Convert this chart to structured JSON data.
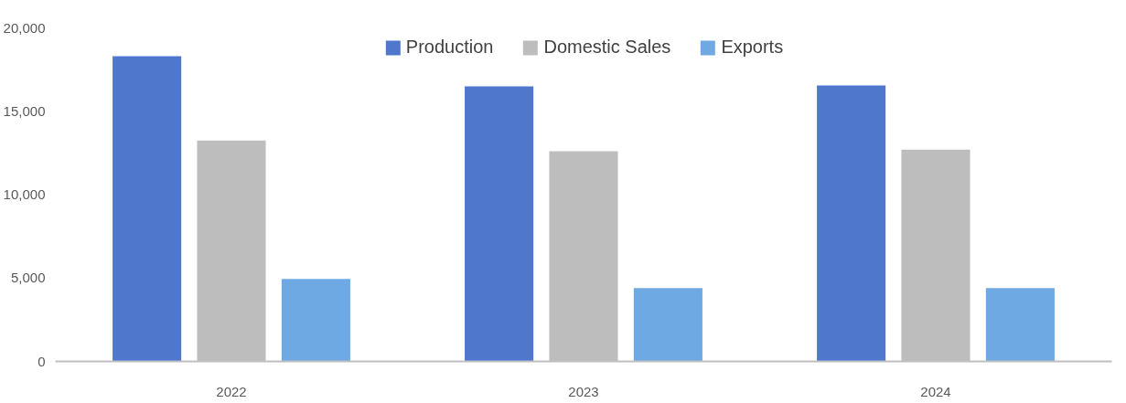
{
  "chart_data": {
    "type": "bar",
    "categories": [
      "2022",
      "2023",
      "2024"
    ],
    "series": [
      {
        "name": "Production",
        "color": "#4f78cc",
        "values": [
          18300,
          16500,
          16550
        ]
      },
      {
        "name": "Domestic Sales",
        "color": "#bdbdbd",
        "values": [
          13250,
          12600,
          12700
        ]
      },
      {
        "name": "Exports",
        "color": "#6ea9e3",
        "values": [
          4950,
          4400,
          4400
        ]
      }
    ],
    "ylim": [
      0,
      20000
    ],
    "yticks": [
      {
        "value": 0,
        "label": "0"
      },
      {
        "value": 5000,
        "label": "5,000"
      },
      {
        "value": 10000,
        "label": "10,000"
      },
      {
        "value": 15000,
        "label": "15,000"
      },
      {
        "value": 20000,
        "label": "20,000"
      }
    ],
    "grid": false,
    "legend": "top"
  }
}
